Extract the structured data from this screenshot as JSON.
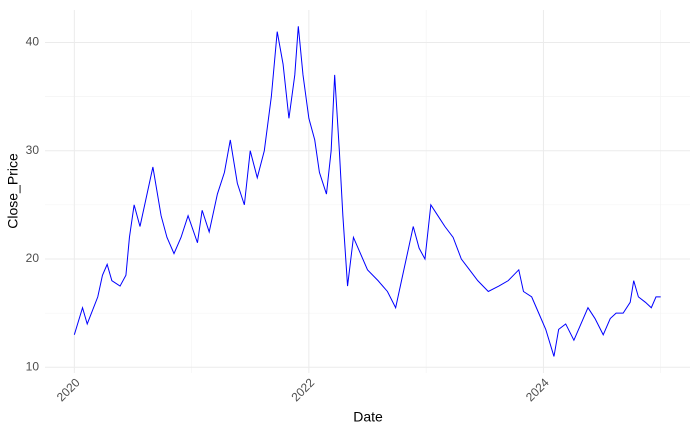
{
  "chart_data": {
    "type": "line",
    "x_label": "Date",
    "y_label": "Close_Price",
    "xlim": [
      2019.75,
      2025.25
    ],
    "ylim": [
      9.47,
      43.0
    ],
    "xticks": [
      2020,
      2022,
      2024
    ],
    "yticks": [
      10,
      20,
      30,
      40
    ],
    "xminor": [
      2021,
      2023,
      2025
    ],
    "yminor": [
      15,
      25,
      35
    ],
    "grid": true,
    "x": [
      2020.0,
      2020.07,
      2020.11,
      2020.2,
      2020.24,
      2020.28,
      2020.32,
      2020.39,
      2020.44,
      2020.47,
      2020.51,
      2020.56,
      2020.6,
      2020.67,
      2020.74,
      2020.79,
      2020.85,
      2020.91,
      2020.97,
      2021.05,
      2021.09,
      2021.15,
      2021.22,
      2021.28,
      2021.33,
      2021.39,
      2021.45,
      2021.5,
      2021.56,
      2021.62,
      2021.68,
      2021.73,
      2021.78,
      2021.83,
      2021.88,
      2021.91,
      2021.95,
      2022.0,
      2022.05,
      2022.09,
      2022.15,
      2022.19,
      2022.22,
      2022.26,
      2022.29,
      2022.33,
      2022.38,
      2022.44,
      2022.5,
      2022.59,
      2022.67,
      2022.74,
      2022.79,
      2022.85,
      2022.89,
      2022.94,
      2022.99,
      2023.04,
      2023.1,
      2023.16,
      2023.23,
      2023.3,
      2023.37,
      2023.44,
      2023.53,
      2023.62,
      2023.7,
      2023.79,
      2023.83,
      2023.9,
      2023.96,
      2024.02,
      2024.09,
      2024.13,
      2024.19,
      2024.26,
      2024.32,
      2024.38,
      2024.44,
      2024.51,
      2024.57,
      2024.62,
      2024.68,
      2024.74,
      2024.77,
      2024.81,
      2024.87,
      2024.92,
      2024.96,
      2025.0
    ],
    "series": [
      {
        "color": "#0000ff",
        "values": [
          13,
          15.5,
          14,
          16.5,
          18.5,
          19.5,
          18,
          17.5,
          18.5,
          22,
          25,
          23,
          25,
          28.5,
          24,
          22,
          20.5,
          22,
          24,
          21.5,
          24.5,
          22.5,
          26,
          28,
          31,
          27,
          25,
          30,
          27.5,
          30,
          35,
          41,
          38,
          33,
          37,
          41.5,
          37,
          33,
          31,
          28,
          26,
          30,
          37,
          30,
          24,
          17.5,
          22,
          20.5,
          19,
          18,
          17,
          15.5,
          18,
          21,
          23,
          21,
          20,
          25,
          24,
          23,
          22,
          20,
          19,
          18,
          17,
          17.5,
          18,
          19,
          17,
          16.5,
          15,
          13.5,
          11,
          13.5,
          14,
          12.5,
          14,
          15.5,
          14.5,
          13,
          14.5,
          15,
          15,
          16,
          18,
          16.5,
          16,
          15.5,
          16.5,
          16.5
        ]
      }
    ]
  }
}
